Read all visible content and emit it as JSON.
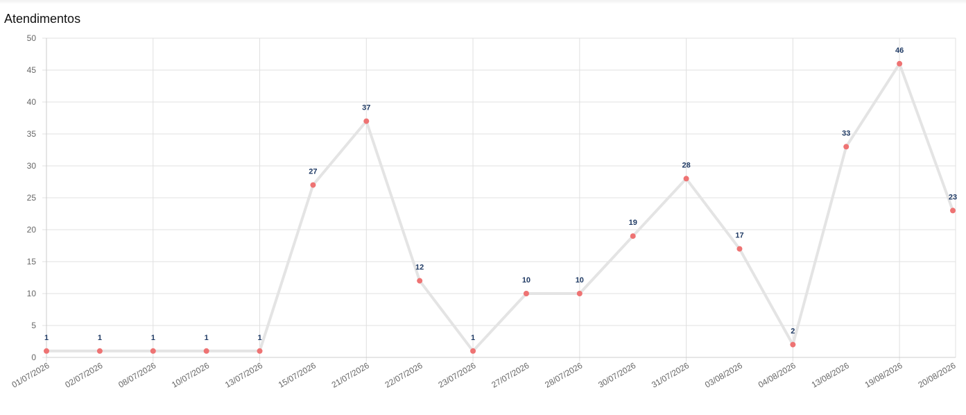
{
  "header": {
    "title": "Atendimentos"
  },
  "colors": {
    "line": "#e4e4e4",
    "point": "#ee7373",
    "data_label": "#1f3a64",
    "grid": "#e0e0e0",
    "axis": "#cccccc"
  },
  "chart_data": {
    "type": "line",
    "title": "Atendimentos",
    "xlabel": "",
    "ylabel": "",
    "categories": [
      "01/07/2026",
      "02/07/2026",
      "08/07/2026",
      "10/07/2026",
      "13/07/2026",
      "15/07/2026",
      "21/07/2026",
      "22/07/2026",
      "23/07/2026",
      "27/07/2026",
      "28/07/2026",
      "30/07/2026",
      "31/07/2026",
      "03/08/2026",
      "04/08/2026",
      "13/08/2026",
      "19/08/2026",
      "20/08/2026"
    ],
    "series": [
      {
        "values": [
          1,
          1,
          1,
          1,
          1,
          27,
          37,
          12,
          1,
          10,
          10,
          19,
          28,
          17,
          2,
          33,
          46,
          23
        ]
      }
    ],
    "ylim": [
      0,
      50
    ],
    "yticks": [
      0,
      5,
      10,
      15,
      20,
      25,
      30,
      35,
      40,
      45,
      50
    ],
    "grid": true,
    "data_labels": true,
    "legend": "none"
  }
}
